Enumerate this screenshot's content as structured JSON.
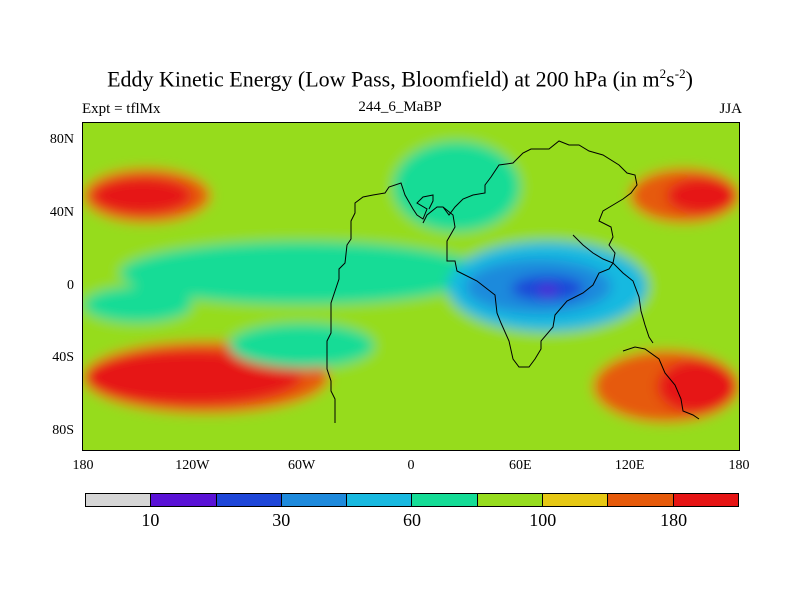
{
  "figure": {
    "title_main": "Eddy Kinetic Energy (Low Pass, Bloomfield) at 200 hPa (in m",
    "title_sup1": "2",
    "title_mid": "s",
    "title_sup2": "-2",
    "title_end": ")",
    "left_label": "Expt = tflMx",
    "center_label": "244_6_MaBP",
    "right_label": "JJA"
  },
  "axes": {
    "y_ticks": [
      {
        "label": "80N",
        "value": 80
      },
      {
        "label": "40N",
        "value": 40
      },
      {
        "label": "0",
        "value": 0
      },
      {
        "label": "40S",
        "value": -40
      },
      {
        "label": "80S",
        "value": -80
      }
    ],
    "x_ticks": [
      {
        "label": "180",
        "value": -180
      },
      {
        "label": "120W",
        "value": -120
      },
      {
        "label": "60W",
        "value": -60
      },
      {
        "label": "0",
        "value": 0
      },
      {
        "label": "60E",
        "value": 60
      },
      {
        "label": "120E",
        "value": 120
      },
      {
        "label": "180",
        "value": 180
      }
    ],
    "lon_range": [
      -180,
      180
    ],
    "lat_range": [
      -90,
      90
    ]
  },
  "colorbar": {
    "colors": [
      "#d6d6d6",
      "#5a12d6",
      "#1e46d8",
      "#1e8adc",
      "#19b9e0",
      "#14dc96",
      "#96dc1e",
      "#e6c814",
      "#e65a0a",
      "#e61414"
    ],
    "labels": [
      {
        "text": "10",
        "boundary": 2
      },
      {
        "text": "30",
        "boundary": 4
      },
      {
        "text": "60",
        "boundary": 6
      },
      {
        "text": "100",
        "boundary": 8
      },
      {
        "text": "180",
        "boundary": 10
      }
    ]
  },
  "chart_data": {
    "type": "heatmap",
    "variable": "Eddy Kinetic Energy",
    "units": "m^2 s^-2",
    "level": "200 hPa",
    "season": "JJA",
    "x": "longitude",
    "y": "latitude",
    "xlim": [
      -180,
      180
    ],
    "ylim": [
      -90,
      90
    ],
    "color_levels": [
      10,
      30,
      60,
      100,
      180
    ],
    "regions": [
      {
        "lon": [
          -180,
          180
        ],
        "lat": [
          -90,
          90
        ],
        "level": 7
      },
      {
        "lon": [
          -180,
          -110
        ],
        "lat": [
          35,
          65
        ],
        "level": 9
      },
      {
        "lon": [
          -175,
          -120
        ],
        "lat": [
          40,
          60
        ],
        "level": 10
      },
      {
        "lon": [
          120,
          180
        ],
        "lat": [
          35,
          65
        ],
        "level": 9
      },
      {
        "lon": [
          140,
          180
        ],
        "lat": [
          40,
          60
        ],
        "level": 10
      },
      {
        "lon": [
          -180,
          -45
        ],
        "lat": [
          -70,
          -30
        ],
        "level": 9
      },
      {
        "lon": [
          -180,
          -60
        ],
        "lat": [
          -65,
          -35
        ],
        "level": 10
      },
      {
        "lon": [
          100,
          180
        ],
        "lat": [
          -75,
          -35
        ],
        "level": 9
      },
      {
        "lon": [
          135,
          180
        ],
        "lat": [
          -70,
          -40
        ],
        "level": 10
      },
      {
        "lon": [
          -160,
          40
        ],
        "lat": [
          -10,
          25
        ],
        "level": 6
      },
      {
        "lon": [
          20,
          130
        ],
        "lat": [
          -25,
          25
        ],
        "level": 5
      },
      {
        "lon": [
          30,
          110
        ],
        "lat": [
          -15,
          15
        ],
        "level": 4
      },
      {
        "lon": [
          55,
          95
        ],
        "lat": [
          -8,
          6
        ],
        "level": 3
      },
      {
        "lon": [
          70,
          80
        ],
        "lat": [
          -5,
          0
        ],
        "level": 2
      },
      {
        "lon": [
          -180,
          -120
        ],
        "lat": [
          -20,
          0
        ],
        "level": 6
      },
      {
        "lon": [
          -10,
          60
        ],
        "lat": [
          30,
          80
        ],
        "level": 6
      },
      {
        "lon": [
          -100,
          -20
        ],
        "lat": [
          -45,
          -20
        ],
        "level": 6
      }
    ]
  }
}
